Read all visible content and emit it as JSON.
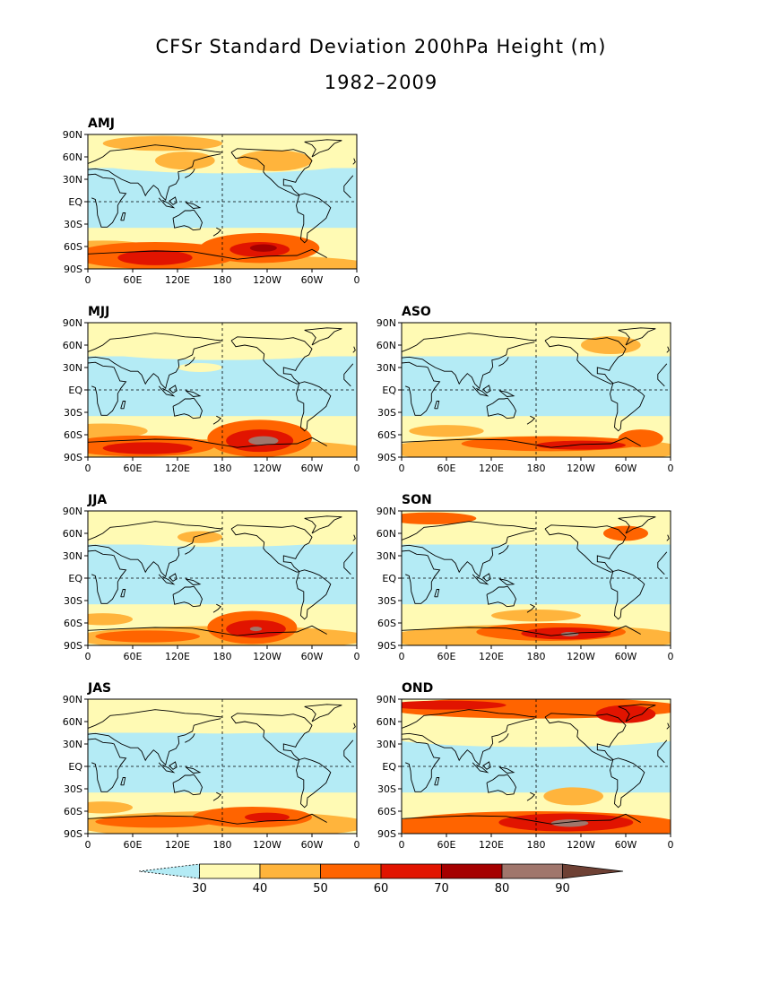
{
  "title": "CFSr Standard Deviation 200hPa Height (m)",
  "subtitle": "1982–2009",
  "lat_labels": [
    "90N",
    "60N",
    "30N",
    "EQ",
    "30S",
    "60S",
    "90S"
  ],
  "lon_labels": [
    "0",
    "60E",
    "120E",
    "180",
    "120W",
    "60W",
    "0"
  ],
  "panels": [
    {
      "name": "AMJ",
      "col": 0,
      "row": 0,
      "pattern": "amj"
    },
    {
      "name": "MJJ",
      "col": 0,
      "row": 1,
      "pattern": "mjj"
    },
    {
      "name": "ASO",
      "col": 1,
      "row": 1,
      "pattern": "aso"
    },
    {
      "name": "JJA",
      "col": 0,
      "row": 2,
      "pattern": "jja"
    },
    {
      "name": "SON",
      "col": 1,
      "row": 2,
      "pattern": "son"
    },
    {
      "name": "JAS",
      "col": 0,
      "row": 3,
      "pattern": "jas"
    },
    {
      "name": "OND",
      "col": 1,
      "row": 3,
      "pattern": "ond"
    }
  ],
  "colorbar": {
    "levels": [
      30,
      40,
      50,
      60,
      70,
      80,
      90
    ],
    "labels": [
      "30",
      "40",
      "50",
      "60",
      "70",
      "80",
      "90"
    ],
    "colors": [
      "#b4ebf5",
      "#fffab4",
      "#ffb43c",
      "#ff6400",
      "#e11400",
      "#a50000",
      "#a0766c",
      "#6e4034"
    ]
  }
}
